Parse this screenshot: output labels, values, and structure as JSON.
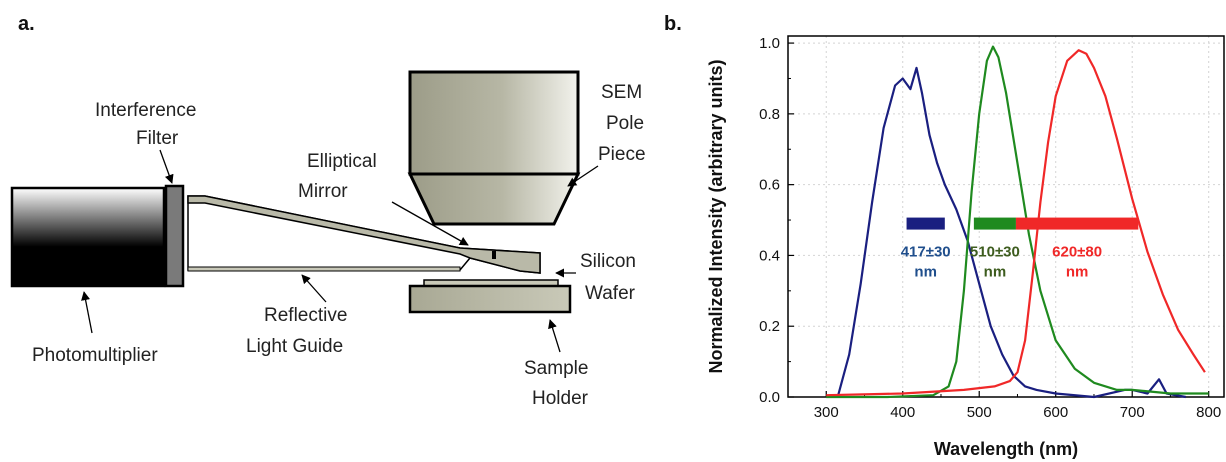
{
  "panels": {
    "a": "a.",
    "b": "b."
  },
  "labels": {
    "interference_1": "Interference",
    "interference_2": "Filter",
    "sem_1": "SEM",
    "sem_2": "Pole",
    "sem_3": "Piece",
    "elliptical_1": "Elliptical",
    "elliptical_2": "Mirror",
    "silicon_1": "Silicon",
    "silicon_2": "Wafer",
    "photomultiplier": "Photomultiplier",
    "reflective_1": "Reflective",
    "reflective_2": "Light Guide",
    "sample_1": "Sample",
    "sample_2": "Holder"
  },
  "chart_data": {
    "type": "line",
    "xlabel": "Wavelength (nm)",
    "ylabel": "Normalized Intensity (arbitrary units)",
    "xlim": [
      250,
      820
    ],
    "ylim": [
      0,
      1.02
    ],
    "xticks": [
      "300",
      "400",
      "500",
      "600",
      "700",
      "800"
    ],
    "yticks": [
      "0.0",
      "0.2",
      "0.4",
      "0.6",
      "0.8",
      "1.0"
    ],
    "grid": true,
    "colors": {
      "blue": "#1a1f80",
      "green": "#1f8a1f",
      "red": "#f02828"
    },
    "series": [
      {
        "color_key": "blue",
        "x": [
          315,
          330,
          345,
          360,
          375,
          390,
          400,
          410,
          418,
          425,
          435,
          445,
          455,
          470,
          485,
          500,
          515,
          530,
          545,
          560,
          575,
          600,
          650,
          690,
          700,
          720,
          735,
          745,
          770
        ],
        "y": [
          0.0,
          0.12,
          0.32,
          0.55,
          0.76,
          0.88,
          0.9,
          0.87,
          0.93,
          0.86,
          0.74,
          0.66,
          0.6,
          0.53,
          0.44,
          0.32,
          0.2,
          0.12,
          0.06,
          0.03,
          0.02,
          0.01,
          0.0,
          0.02,
          0.02,
          0.01,
          0.05,
          0.01,
          0.0
        ]
      },
      {
        "color_key": "green",
        "x": [
          300,
          380,
          440,
          460,
          470,
          480,
          490,
          500,
          510,
          518,
          525,
          535,
          550,
          565,
          580,
          600,
          625,
          650,
          680,
          700,
          750,
          800
        ],
        "y": [
          0.0,
          0.0,
          0.005,
          0.03,
          0.1,
          0.3,
          0.58,
          0.8,
          0.95,
          0.99,
          0.96,
          0.86,
          0.66,
          0.46,
          0.3,
          0.16,
          0.08,
          0.04,
          0.02,
          0.02,
          0.01,
          0.01
        ],
        "x_end": 795
      },
      {
        "color_key": "red",
        "x": [
          300,
          400,
          480,
          520,
          540,
          550,
          560,
          570,
          580,
          590,
          600,
          615,
          630,
          640,
          650,
          665,
          680,
          700,
          720,
          740,
          760,
          780,
          795
        ],
        "y": [
          0.005,
          0.01,
          0.02,
          0.03,
          0.045,
          0.07,
          0.16,
          0.35,
          0.55,
          0.72,
          0.85,
          0.95,
          0.98,
          0.97,
          0.93,
          0.85,
          0.73,
          0.56,
          0.41,
          0.29,
          0.19,
          0.12,
          0.07
        ]
      }
    ],
    "bands": [
      {
        "color_key": "blue",
        "x_start": 405,
        "x_end": 455,
        "label_1": "417±30",
        "label_2": "nm",
        "label_color": "#1f4e8c"
      },
      {
        "color_key": "green",
        "x_start": 493,
        "x_end": 548,
        "label_1": "510±30",
        "label_2": "nm",
        "label_color": "#3d5c1e"
      },
      {
        "color_key": "red",
        "x_start": 548,
        "x_end": 708,
        "label_1": "620±80",
        "label_2": "nm",
        "label_color": "#f02828"
      }
    ],
    "band_y": 0.49
  }
}
